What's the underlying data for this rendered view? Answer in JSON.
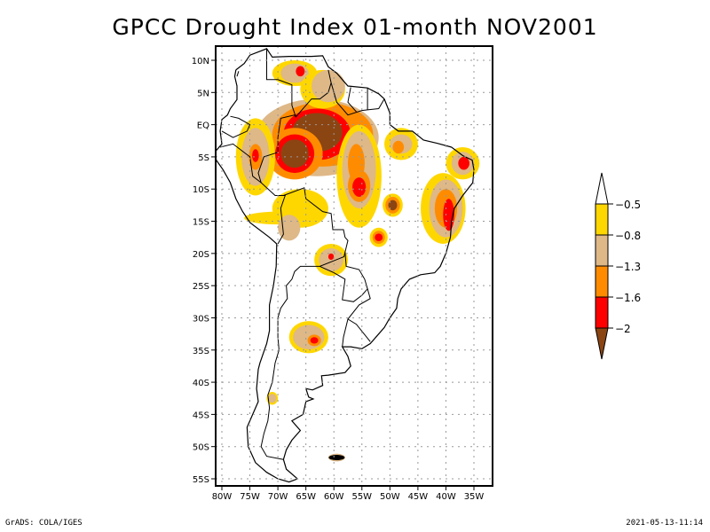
{
  "title": "GPCC Drought Index 01-month NOV2001",
  "footer": {
    "left": "GrADS: COLA/IGES",
    "right": "2021-05-13-11:14"
  },
  "map": {
    "region": "South America",
    "lon_range": [
      -80,
      -35
    ],
    "lat_range": [
      -55,
      10
    ],
    "x_ticks": [
      "80W",
      "75W",
      "70W",
      "65W",
      "60W",
      "55W",
      "50W",
      "45W",
      "40W",
      "35W"
    ],
    "y_ticks": [
      "10N",
      "5N",
      "EQ",
      "5S",
      "10S",
      "15S",
      "20S",
      "25S",
      "30S",
      "35S",
      "40S",
      "45S",
      "50S",
      "55S"
    ],
    "grid": "dotted"
  },
  "colorbar": {
    "levels": [
      "-0.5",
      "-0.8",
      "-1.3",
      "-1.6",
      "-2"
    ],
    "colors": [
      "#ffffff",
      "#ffd700",
      "#deb887",
      "#ff8c00",
      "#ff0000",
      "#8b4513"
    ],
    "bins": [
      {
        "name": "above -0.5",
        "color": "#ffffff"
      },
      {
        "name": "-0.8 to -0.5",
        "color": "#ffd700"
      },
      {
        "name": "-1.3 to -0.8",
        "color": "#deb887"
      },
      {
        "name": "-1.6 to -1.3",
        "color": "#ff8c00"
      },
      {
        "name": "-2 to -1.6",
        "color": "#ff0000"
      },
      {
        "name": "below -2",
        "color": "#8b4513"
      }
    ]
  },
  "drought_areas": [
    {
      "name": "central-amazon",
      "lon": -63.5,
      "lat": -1.5,
      "max_class": 5
    },
    {
      "name": "western-amazon",
      "lon": -66.5,
      "lat": -4.5,
      "max_class": 5
    },
    {
      "name": "peru-north",
      "lon": -74.5,
      "lat": -5.0,
      "max_class": 4
    },
    {
      "name": "para-south",
      "lon": -55.5,
      "lat": -9.5,
      "max_class": 4
    },
    {
      "name": "para-west",
      "lon": -57.0,
      "lat": -4.0,
      "max_class": 4
    },
    {
      "name": "goias",
      "lon": -49.5,
      "lat": -12.5,
      "max_class": 5
    },
    {
      "name": "bahia",
      "lon": -40.0,
      "lat": -13.0,
      "max_class": 4
    },
    {
      "name": "northeast-tip",
      "lon": -37.0,
      "lat": -6.0,
      "max_class": 4
    },
    {
      "name": "minas",
      "lon": -52.0,
      "lat": -17.5,
      "max_class": 4
    },
    {
      "name": "bolivia-south",
      "lon": -60.5,
      "lat": -20.5,
      "max_class": 4
    },
    {
      "name": "argentina-central",
      "lon": -64.5,
      "lat": -33.0,
      "max_class": 4
    },
    {
      "name": "venezuela",
      "lon": -63.0,
      "lat": 8.5,
      "max_class": 4
    },
    {
      "name": "guyana",
      "lon": -59.5,
      "lat": 5.0,
      "max_class": 3
    },
    {
      "name": "patagonia-north",
      "lon": -71.0,
      "lat": -42.5,
      "max_class": 4
    },
    {
      "name": "falklands",
      "lon": -59.5,
      "lat": -51.7,
      "max_class": 2
    }
  ]
}
